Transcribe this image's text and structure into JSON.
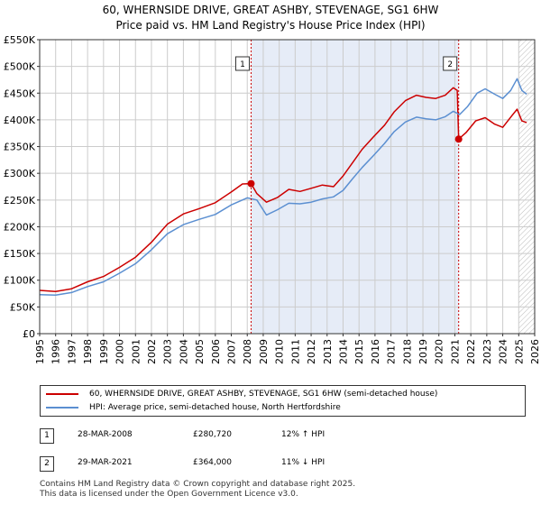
{
  "title_line1": "60, WHERNSIDE DRIVE, GREAT ASHBY, STEVENAGE, SG1 6HW",
  "title_line2": "Price paid vs. HM Land Registry's House Price Index (HPI)",
  "colors": {
    "price": "#cc0000",
    "hpi": "#5b8fd1",
    "band": "#e6ecf7",
    "grid": "#cccccc",
    "marker_line": "#cc0000"
  },
  "chart_data": {
    "type": "line",
    "xlim": [
      1995,
      2026
    ],
    "ylim": [
      0,
      550000
    ],
    "x_ticks": [
      "1995",
      "1996",
      "1997",
      "1998",
      "1999",
      "2000",
      "2001",
      "2002",
      "2003",
      "2004",
      "2005",
      "2006",
      "2007",
      "2008",
      "2009",
      "2010",
      "2011",
      "2012",
      "2013",
      "2014",
      "2015",
      "2016",
      "2017",
      "2018",
      "2019",
      "2020",
      "2021",
      "2022",
      "2023",
      "2024",
      "2025",
      "2026"
    ],
    "y_ticks": [
      {
        "value": 0,
        "label": "£0"
      },
      {
        "value": 50000,
        "label": "£50K"
      },
      {
        "value": 100000,
        "label": "£100K"
      },
      {
        "value": 150000,
        "label": "£150K"
      },
      {
        "value": 200000,
        "label": "£200K"
      },
      {
        "value": 250000,
        "label": "£250K"
      },
      {
        "value": 300000,
        "label": "£300K"
      },
      {
        "value": 350000,
        "label": "£350K"
      },
      {
        "value": 400000,
        "label": "£400K"
      },
      {
        "value": 450000,
        "label": "£450K"
      },
      {
        "value": 500000,
        "label": "£500K"
      },
      {
        "value": 550000,
        "label": "£550K"
      }
    ],
    "highlight_band": {
      "from": 2008.24,
      "to": 2021.24
    },
    "hatch_from": 2025.0,
    "series": [
      {
        "name": "60, WHERNSIDE DRIVE, GREAT ASHBY, STEVENAGE, SG1 6HW (semi-detached house)",
        "key": "price",
        "points": [
          [
            1995.0,
            81000
          ],
          [
            1996.0,
            79000
          ],
          [
            1997.0,
            84000
          ],
          [
            1998.0,
            97000
          ],
          [
            1999.0,
            107000
          ],
          [
            2000.0,
            124000
          ],
          [
            2001.0,
            143000
          ],
          [
            2002.0,
            171000
          ],
          [
            2003.0,
            205000
          ],
          [
            2004.0,
            224000
          ],
          [
            2005.0,
            234000
          ],
          [
            2006.0,
            245000
          ],
          [
            2007.0,
            265000
          ],
          [
            2007.7,
            280000
          ],
          [
            2008.24,
            280720
          ],
          [
            2008.6,
            262000
          ],
          [
            2009.2,
            246000
          ],
          [
            2009.9,
            255000
          ],
          [
            2010.6,
            270000
          ],
          [
            2011.3,
            266000
          ],
          [
            2012.0,
            272000
          ],
          [
            2012.7,
            278000
          ],
          [
            2013.4,
            275000
          ],
          [
            2014.0,
            295000
          ],
          [
            2014.6,
            320000
          ],
          [
            2015.2,
            345000
          ],
          [
            2015.9,
            368000
          ],
          [
            2016.6,
            390000
          ],
          [
            2017.2,
            415000
          ],
          [
            2017.9,
            436000
          ],
          [
            2018.6,
            446000
          ],
          [
            2019.2,
            442000
          ],
          [
            2019.8,
            440000
          ],
          [
            2020.4,
            446000
          ],
          [
            2020.9,
            460000
          ],
          [
            2021.15,
            455000
          ],
          [
            2021.24,
            364000
          ],
          [
            2021.7,
            376000
          ],
          [
            2022.3,
            398000
          ],
          [
            2022.9,
            404000
          ],
          [
            2023.5,
            392000
          ],
          [
            2024.0,
            386000
          ],
          [
            2024.5,
            405000
          ],
          [
            2024.9,
            420000
          ],
          [
            2025.2,
            398000
          ],
          [
            2025.5,
            395000
          ]
        ]
      },
      {
        "name": "HPI: Average price, semi-detached house, North Hertfordshire",
        "key": "hpi",
        "points": [
          [
            1995.0,
            73000
          ],
          [
            1996.0,
            72000
          ],
          [
            1997.0,
            77000
          ],
          [
            1998.0,
            88000
          ],
          [
            1999.0,
            97000
          ],
          [
            2000.0,
            113000
          ],
          [
            2001.0,
            131000
          ],
          [
            2002.0,
            157000
          ],
          [
            2003.0,
            187000
          ],
          [
            2004.0,
            204000
          ],
          [
            2005.0,
            214000
          ],
          [
            2006.0,
            223000
          ],
          [
            2007.0,
            241000
          ],
          [
            2008.0,
            254000
          ],
          [
            2008.6,
            250000
          ],
          [
            2009.2,
            222000
          ],
          [
            2009.9,
            232000
          ],
          [
            2010.6,
            244000
          ],
          [
            2011.3,
            243000
          ],
          [
            2012.0,
            246000
          ],
          [
            2012.7,
            252000
          ],
          [
            2013.4,
            256000
          ],
          [
            2014.0,
            268000
          ],
          [
            2014.6,
            290000
          ],
          [
            2015.2,
            311000
          ],
          [
            2015.9,
            333000
          ],
          [
            2016.6,
            356000
          ],
          [
            2017.2,
            378000
          ],
          [
            2017.9,
            396000
          ],
          [
            2018.6,
            405000
          ],
          [
            2019.2,
            402000
          ],
          [
            2019.8,
            400000
          ],
          [
            2020.4,
            406000
          ],
          [
            2020.9,
            416000
          ],
          [
            2021.3,
            410000
          ],
          [
            2021.8,
            425000
          ],
          [
            2022.4,
            450000
          ],
          [
            2022.9,
            458000
          ],
          [
            2023.5,
            448000
          ],
          [
            2024.0,
            440000
          ],
          [
            2024.5,
            455000
          ],
          [
            2024.9,
            477000
          ],
          [
            2025.2,
            455000
          ],
          [
            2025.5,
            448000
          ]
        ]
      }
    ],
    "markers": [
      {
        "label": "1",
        "x": 2008.24,
        "y": 280720
      },
      {
        "label": "2",
        "x": 2021.24,
        "y": 364000
      }
    ]
  },
  "legend": {
    "price_label": "60, WHERNSIDE DRIVE, GREAT ASHBY, STEVENAGE, SG1 6HW (semi-detached house)",
    "hpi_label": "HPI: Average price, semi-detached house, North Hertfordshire"
  },
  "sales": [
    {
      "num": "1",
      "date": "28-MAR-2008",
      "price": "£280,720",
      "hpi": "12% ↑ HPI"
    },
    {
      "num": "2",
      "date": "29-MAR-2021",
      "price": "£364,000",
      "hpi": "11% ↓ HPI"
    }
  ],
  "footer_line1": "Contains HM Land Registry data © Crown copyright and database right 2025.",
  "footer_line2": "This data is licensed under the Open Government Licence v3.0."
}
